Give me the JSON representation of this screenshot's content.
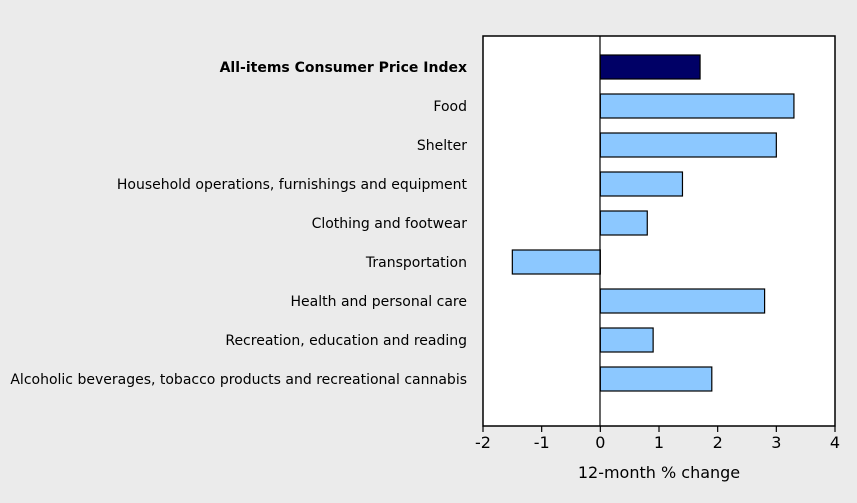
{
  "chart_data": {
    "type": "bar",
    "orientation": "horizontal",
    "categories": [
      "All-items Consumer Price Index",
      "Food",
      "Shelter",
      "Household operations, furnishings and equipment",
      "Clothing and footwear",
      "Transportation",
      "Health and personal care",
      "Recreation, education and reading",
      "Alcoholic beverages, tobacco products and recreational cannabis"
    ],
    "values": [
      1.7,
      3.3,
      3.0,
      1.4,
      0.8,
      -1.5,
      2.8,
      0.9,
      1.9
    ],
    "highlight_index": 0,
    "xlabel": "12-month % change",
    "xlim": [
      -2,
      4
    ],
    "xticks": [
      "-2",
      "-1",
      "0",
      "1",
      "2",
      "3",
      "4"
    ],
    "grid": false,
    "colors": {
      "bar": "#8cc8ff",
      "highlight": "#000066",
      "outline": "#000000",
      "plot_background": "#ffffff",
      "page_background": "#ebebeb"
    }
  }
}
